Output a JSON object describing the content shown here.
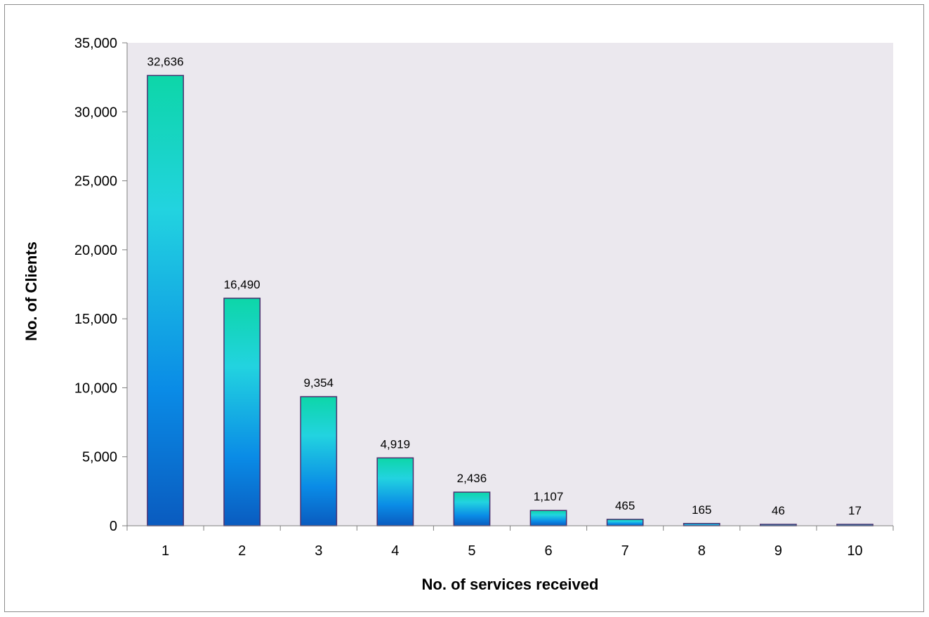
{
  "chart_data": {
    "type": "bar",
    "title": "",
    "xlabel": "No. of services received",
    "ylabel": "No. of Clients",
    "categories": [
      "1",
      "2",
      "3",
      "4",
      "5",
      "6",
      "7",
      "8",
      "9",
      "10"
    ],
    "values": [
      32636,
      16490,
      9354,
      4919,
      2436,
      1107,
      465,
      165,
      46,
      17
    ],
    "data_labels": [
      "32,636",
      "16,490",
      "9,354",
      "4,919",
      "2,436",
      "1,107",
      "465",
      "165",
      "46",
      "17"
    ],
    "ylim": [
      0,
      35000
    ],
    "yticks": [
      0,
      5000,
      10000,
      15000,
      20000,
      25000,
      30000,
      35000
    ],
    "ytick_labels": [
      "0",
      "5,000",
      "10,000",
      "15,000",
      "20,000",
      "25,000",
      "30,000",
      "35,000"
    ],
    "grid": false,
    "legend": "none",
    "colors": {
      "plot_background": "#ebe8ee",
      "bar_top": "#0dd6a8",
      "bar_mid": "#22d3e0",
      "bar_lower": "#0a8be6",
      "bar_bottom": "#0a5bbf",
      "bar_outline": "#4b2f6e"
    }
  }
}
